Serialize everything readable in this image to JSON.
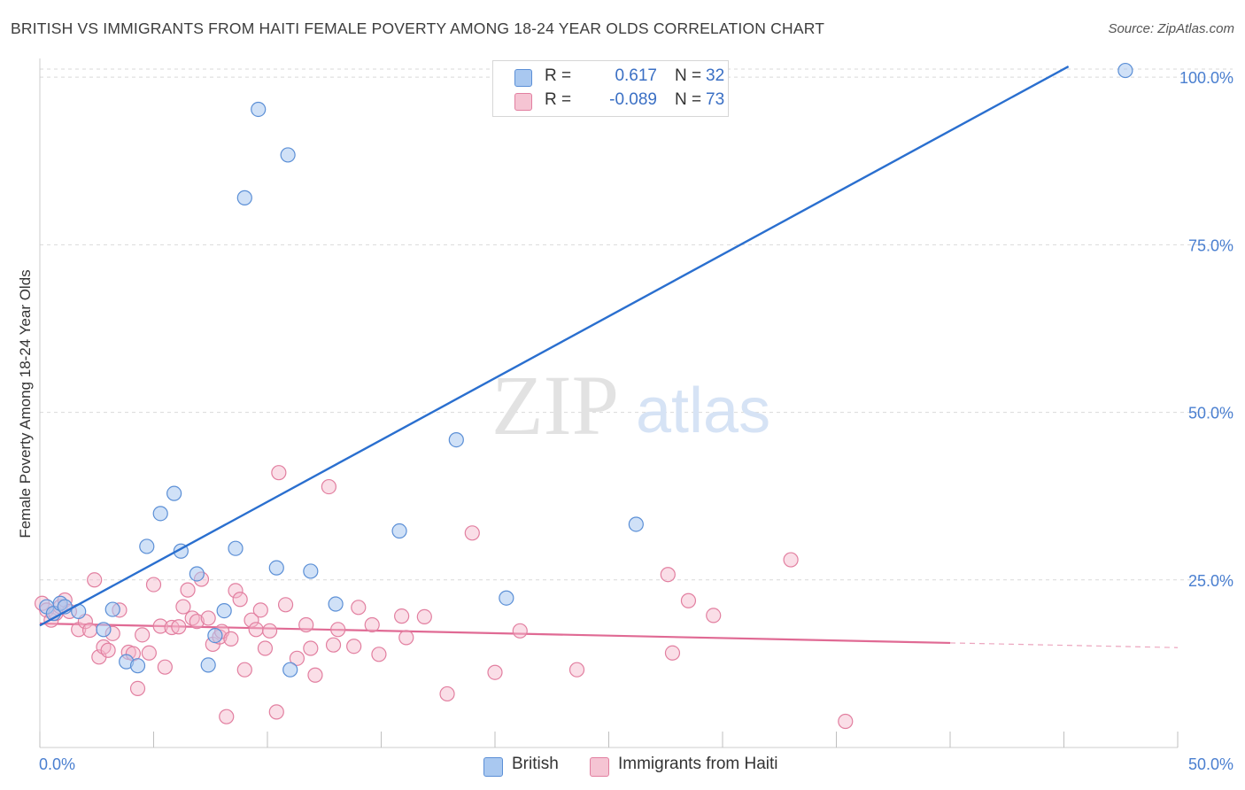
{
  "title": "BRITISH VS IMMIGRANTS FROM HAITI FEMALE POVERTY AMONG 18-24 YEAR OLDS CORRELATION CHART",
  "source": "Source: ZipAtlas.com",
  "watermark": {
    "zip": "ZIP",
    "atlas": "atlas"
  },
  "colors": {
    "british_fill": "#a9c8f0",
    "british_stroke": "#5b8fd6",
    "british_line": "#2a6fcf",
    "haiti_fill": "#f5b6c9",
    "haiti_stroke": "#e27fa0",
    "haiti_line": "#e06a94",
    "grid": "#d9d9d9",
    "tick_text": "#4a7fd0"
  },
  "legend_top": [
    {
      "r_label": "R =",
      "r_value": "0.617",
      "n_label": "N =",
      "n_value": "32"
    },
    {
      "r_label": "R =",
      "r_value": "-0.089",
      "n_label": "N =",
      "n_value": "73"
    }
  ],
  "legend_bottom": [
    "British",
    "Immigrants from Haiti"
  ],
  "chart_data": {
    "type": "scatter",
    "title": "BRITISH VS IMMIGRANTS FROM HAITI FEMALE POVERTY AMONG 18-24 YEAR OLDS CORRELATION CHART",
    "xlabel": "",
    "ylabel": "Female Poverty Among 18-24 Year Olds",
    "xlim": [
      0,
      50
    ],
    "ylim": [
      0,
      102
    ],
    "x_tick_labels": [
      "0.0%",
      "50.0%"
    ],
    "y_ticks": [
      25,
      50,
      75,
      100
    ],
    "y_tick_labels": [
      "25.0%",
      "50.0%",
      "75.0%",
      "100.0%"
    ],
    "grid": true,
    "legend_position": "top-center",
    "series": [
      {
        "name": "British",
        "r": 0.617,
        "n": 32,
        "points": [
          [
            0.3,
            21.0
          ],
          [
            0.6,
            20.0
          ],
          [
            0.9,
            21.5
          ],
          [
            1.1,
            21.0
          ],
          [
            1.7,
            20.3
          ],
          [
            2.8,
            17.6
          ],
          [
            3.2,
            20.6
          ],
          [
            3.8,
            12.8
          ],
          [
            4.3,
            12.2
          ],
          [
            4.7,
            30.0
          ],
          [
            5.3,
            34.9
          ],
          [
            5.9,
            37.9
          ],
          [
            6.2,
            29.3
          ],
          [
            6.9,
            25.9
          ],
          [
            7.4,
            12.3
          ],
          [
            7.7,
            16.7
          ],
          [
            8.1,
            20.4
          ],
          [
            8.6,
            29.7
          ],
          [
            9.0,
            82.0
          ],
          [
            9.6,
            95.2
          ],
          [
            10.4,
            26.8
          ],
          [
            10.9,
            88.4
          ],
          [
            11.0,
            11.6
          ],
          [
            11.9,
            26.3
          ],
          [
            13.0,
            21.4
          ],
          [
            15.8,
            32.3
          ],
          [
            18.3,
            45.9
          ],
          [
            20.5,
            22.3
          ],
          [
            22.3,
            101.1
          ],
          [
            26.2,
            33.3
          ],
          [
            27.9,
            101.0
          ],
          [
            47.7,
            101.0
          ]
        ],
        "trend": {
          "x": [
            0,
            45.2
          ],
          "y": [
            18.2,
            101.6
          ]
        }
      },
      {
        "name": "Immigrants from Haiti",
        "r": -0.089,
        "n": 73,
        "points": [
          [
            0.1,
            21.5
          ],
          [
            0.3,
            20.5
          ],
          [
            0.5,
            19.0
          ],
          [
            0.7,
            20.0
          ],
          [
            0.9,
            21.0
          ],
          [
            1.1,
            22.0
          ],
          [
            1.3,
            20.3
          ],
          [
            1.7,
            17.6
          ],
          [
            2.0,
            18.8
          ],
          [
            2.2,
            17.5
          ],
          [
            2.4,
            25.0
          ],
          [
            2.6,
            13.5
          ],
          [
            2.8,
            15.0
          ],
          [
            3.0,
            14.5
          ],
          [
            3.2,
            17.0
          ],
          [
            3.5,
            20.5
          ],
          [
            3.9,
            14.2
          ],
          [
            4.1,
            14.0
          ],
          [
            4.3,
            8.8
          ],
          [
            4.5,
            16.8
          ],
          [
            4.8,
            14.1
          ],
          [
            5.0,
            24.3
          ],
          [
            5.3,
            18.1
          ],
          [
            5.5,
            12.0
          ],
          [
            5.8,
            17.9
          ],
          [
            6.1,
            18.0
          ],
          [
            6.3,
            21.0
          ],
          [
            6.5,
            23.5
          ],
          [
            6.7,
            19.3
          ],
          [
            6.9,
            18.8
          ],
          [
            7.1,
            25.1
          ],
          [
            7.4,
            19.3
          ],
          [
            7.6,
            15.4
          ],
          [
            7.9,
            16.5
          ],
          [
            8.0,
            17.3
          ],
          [
            8.2,
            4.6
          ],
          [
            8.4,
            16.2
          ],
          [
            8.6,
            23.4
          ],
          [
            8.8,
            22.1
          ],
          [
            9.0,
            11.6
          ],
          [
            9.3,
            19.0
          ],
          [
            9.5,
            17.6
          ],
          [
            9.7,
            20.5
          ],
          [
            9.9,
            14.8
          ],
          [
            10.1,
            17.4
          ],
          [
            10.4,
            5.3
          ],
          [
            10.5,
            41.0
          ],
          [
            10.8,
            21.3
          ],
          [
            11.3,
            13.3
          ],
          [
            11.7,
            18.3
          ],
          [
            11.9,
            14.8
          ],
          [
            12.1,
            10.8
          ],
          [
            12.7,
            38.9
          ],
          [
            12.9,
            15.3
          ],
          [
            13.1,
            17.6
          ],
          [
            13.8,
            15.1
          ],
          [
            14.0,
            20.9
          ],
          [
            14.6,
            18.3
          ],
          [
            14.9,
            13.9
          ],
          [
            15.9,
            19.6
          ],
          [
            16.1,
            16.4
          ],
          [
            16.9,
            19.5
          ],
          [
            17.9,
            8.0
          ],
          [
            19.0,
            32.0
          ],
          [
            20.0,
            11.2
          ],
          [
            21.1,
            17.4
          ],
          [
            23.6,
            11.6
          ],
          [
            27.6,
            25.8
          ],
          [
            27.8,
            14.1
          ],
          [
            28.5,
            21.9
          ],
          [
            29.6,
            19.7
          ],
          [
            35.4,
            3.9
          ],
          [
            33.0,
            28.0
          ]
        ],
        "trend": {
          "x": [
            0,
            40
          ],
          "y": [
            18.5,
            15.6
          ]
        },
        "trend_dashed": {
          "x": [
            40,
            50
          ],
          "y": [
            15.6,
            14.9
          ]
        }
      }
    ]
  }
}
